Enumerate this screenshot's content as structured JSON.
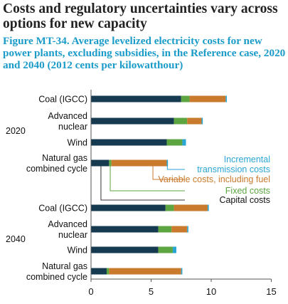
{
  "heading": "Costs and regulatory uncertainties vary across options for new capacity",
  "figure_title": "Figure MT-34. Average levelized electricity costs for new power plants, excluding subsidies, in the Reference case, 2020 and 2040 (2012 cents per kilowatthour)",
  "colors": {
    "capital": "#163a4f",
    "fixed": "#5da541",
    "variable": "#c97a2c",
    "transmission": "#2aa6d4",
    "axis": "#555555"
  },
  "chart_data": {
    "type": "bar",
    "stacked": true,
    "orientation": "horizontal",
    "xlim": [
      0,
      15
    ],
    "xticks": [
      0,
      5,
      10,
      15
    ],
    "grid": false,
    "groups": [
      {
        "label": "2020",
        "categories": [
          {
            "name": "Coal (IGCC)",
            "lines": [
              "Coal (IGCC)"
            ],
            "capital": 7.5,
            "fixed": 0.7,
            "variable": 3.0,
            "transmission": 0.1
          },
          {
            "name": "Advanced nuclear",
            "lines": [
              "Advanced",
              "nuclear"
            ],
            "capital": 6.9,
            "fixed": 1.1,
            "variable": 1.2,
            "transmission": 0.1
          },
          {
            "name": "Wind",
            "lines": [
              "Wind"
            ],
            "capital": 6.3,
            "fixed": 1.3,
            "variable": 0.0,
            "transmission": 0.3
          },
          {
            "name": "Natural gas combined cycle",
            "lines": [
              "Natural gas",
              "combined cycle"
            ],
            "capital": 1.5,
            "fixed": 0.2,
            "variable": 4.6,
            "transmission": 0.1
          }
        ]
      },
      {
        "label": "2040",
        "categories": [
          {
            "name": "Coal (IGCC)",
            "lines": [
              "Coal (IGCC)"
            ],
            "capital": 6.2,
            "fixed": 0.7,
            "variable": 2.8,
            "transmission": 0.1
          },
          {
            "name": "Advanced nuclear",
            "lines": [
              "Advanced",
              "nuclear"
            ],
            "capital": 5.6,
            "fixed": 1.1,
            "variable": 1.3,
            "transmission": 0.1
          },
          {
            "name": "Wind",
            "lines": [
              "Wind"
            ],
            "capital": 5.6,
            "fixed": 1.2,
            "variable": 0.0,
            "transmission": 0.3
          },
          {
            "name": "Natural gas combined cycle",
            "lines": [
              "Natural gas",
              "combined cycle"
            ],
            "capital": 1.3,
            "fixed": 0.2,
            "variable": 6.0,
            "transmission": 0.1
          }
        ]
      }
    ],
    "series": [
      {
        "key": "transmission",
        "name": "Incremental transmission costs",
        "lines": [
          "Incremental",
          "transmission costs"
        ],
        "color": "#2aa6d4"
      },
      {
        "key": "variable",
        "name": "Variable costs, including fuel",
        "lines": [
          "Variable costs, including fuel"
        ],
        "color": "#c97a2c"
      },
      {
        "key": "fixed",
        "name": "Fixed costs",
        "lines": [
          "Fixed costs"
        ],
        "color": "#5da541"
      },
      {
        "key": "capital",
        "name": "Capital costs",
        "lines": [
          "Capital costs"
        ],
        "color": "#111111"
      }
    ]
  }
}
